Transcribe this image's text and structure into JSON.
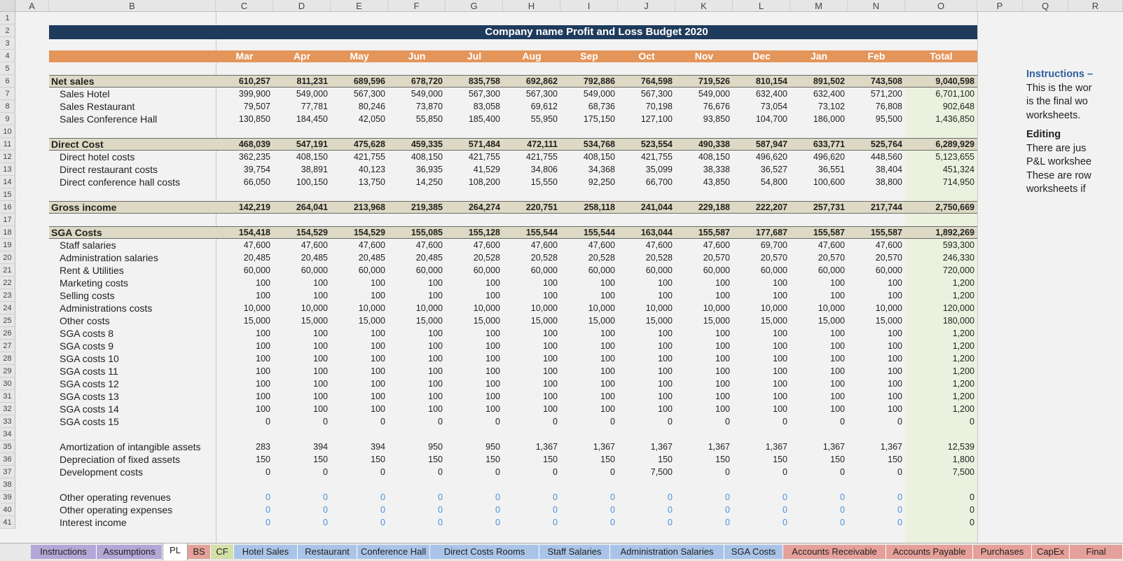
{
  "sheet": {
    "columns": [
      "A",
      "B",
      "C",
      "D",
      "E",
      "F",
      "G",
      "H",
      "I",
      "J",
      "K",
      "L",
      "M",
      "N",
      "O",
      "P",
      "Q",
      "R"
    ],
    "title": "Company name Profit and Loss Budget 2020",
    "months": [
      "Mar",
      "Apr",
      "May",
      "Jun",
      "Jul",
      "Aug",
      "Sep",
      "Oct",
      "Nov",
      "Dec",
      "Jan",
      "Feb",
      "Total"
    ],
    "rows": [
      {
        "n": 6,
        "label": "Net sales",
        "style": "section",
        "values": [
          "610,257",
          "811,231",
          "689,596",
          "678,720",
          "835,758",
          "692,862",
          "792,886",
          "764,598",
          "719,526",
          "810,154",
          "891,502",
          "743,508",
          "9,040,598"
        ]
      },
      {
        "n": 7,
        "label": "Sales Hotel",
        "values": [
          "399,900",
          "549,000",
          "567,300",
          "549,000",
          "567,300",
          "567,300",
          "549,000",
          "567,300",
          "549,000",
          "632,400",
          "632,400",
          "571,200",
          "6,701,100"
        ]
      },
      {
        "n": 8,
        "label": "Sales Restaurant",
        "values": [
          "79,507",
          "77,781",
          "80,246",
          "73,870",
          "83,058",
          "69,612",
          "68,736",
          "70,198",
          "76,676",
          "73,054",
          "73,102",
          "76,808",
          "902,648"
        ]
      },
      {
        "n": 9,
        "label": "Sales Conference Hall",
        "values": [
          "130,850",
          "184,450",
          "42,050",
          "55,850",
          "185,400",
          "55,950",
          "175,150",
          "127,100",
          "93,850",
          "104,700",
          "186,000",
          "95,500",
          "1,436,850"
        ]
      },
      {
        "n": 11,
        "label": "Direct Cost",
        "style": "section",
        "values": [
          "468,039",
          "547,191",
          "475,628",
          "459,335",
          "571,484",
          "472,111",
          "534,768",
          "523,554",
          "490,338",
          "587,947",
          "633,771",
          "525,764",
          "6,289,929"
        ]
      },
      {
        "n": 12,
        "label": "Direct hotel costs",
        "values": [
          "362,235",
          "408,150",
          "421,755",
          "408,150",
          "421,755",
          "421,755",
          "408,150",
          "421,755",
          "408,150",
          "496,620",
          "496,620",
          "448,560",
          "5,123,655"
        ]
      },
      {
        "n": 13,
        "label": "Direct restaurant costs",
        "values": [
          "39,754",
          "38,891",
          "40,123",
          "36,935",
          "41,529",
          "34,806",
          "34,368",
          "35,099",
          "38,338",
          "36,527",
          "36,551",
          "38,404",
          "451,324"
        ]
      },
      {
        "n": 14,
        "label": "Direct conference hall costs",
        "values": [
          "66,050",
          "100,150",
          "13,750",
          "14,250",
          "108,200",
          "15,550",
          "92,250",
          "66,700",
          "43,850",
          "54,800",
          "100,600",
          "38,800",
          "714,950"
        ]
      },
      {
        "n": 16,
        "label": "Gross income",
        "style": "section",
        "values": [
          "142,219",
          "264,041",
          "213,968",
          "219,385",
          "264,274",
          "220,751",
          "258,118",
          "241,044",
          "229,188",
          "222,207",
          "257,731",
          "217,744",
          "2,750,669"
        ]
      },
      {
        "n": 18,
        "label": "SGA Costs",
        "style": "section",
        "values": [
          "154,418",
          "154,529",
          "154,529",
          "155,085",
          "155,128",
          "155,544",
          "155,544",
          "163,044",
          "155,587",
          "177,687",
          "155,587",
          "155,587",
          "1,892,269"
        ]
      },
      {
        "n": 19,
        "label": "Staff salaries",
        "values": [
          "47,600",
          "47,600",
          "47,600",
          "47,600",
          "47,600",
          "47,600",
          "47,600",
          "47,600",
          "47,600",
          "69,700",
          "47,600",
          "47,600",
          "593,300"
        ]
      },
      {
        "n": 20,
        "label": "Administration salaries",
        "values": [
          "20,485",
          "20,485",
          "20,485",
          "20,485",
          "20,528",
          "20,528",
          "20,528",
          "20,528",
          "20,570",
          "20,570",
          "20,570",
          "20,570",
          "246,330"
        ]
      },
      {
        "n": 21,
        "label": "Rent & Utilities",
        "values": [
          "60,000",
          "60,000",
          "60,000",
          "60,000",
          "60,000",
          "60,000",
          "60,000",
          "60,000",
          "60,000",
          "60,000",
          "60,000",
          "60,000",
          "720,000"
        ]
      },
      {
        "n": 22,
        "label": "Marketing costs",
        "values": [
          "100",
          "100",
          "100",
          "100",
          "100",
          "100",
          "100",
          "100",
          "100",
          "100",
          "100",
          "100",
          "1,200"
        ]
      },
      {
        "n": 23,
        "label": "Selling costs",
        "values": [
          "100",
          "100",
          "100",
          "100",
          "100",
          "100",
          "100",
          "100",
          "100",
          "100",
          "100",
          "100",
          "1,200"
        ]
      },
      {
        "n": 24,
        "label": "Administrations costs",
        "values": [
          "10,000",
          "10,000",
          "10,000",
          "10,000",
          "10,000",
          "10,000",
          "10,000",
          "10,000",
          "10,000",
          "10,000",
          "10,000",
          "10,000",
          "120,000"
        ]
      },
      {
        "n": 25,
        "label": "Other costs",
        "values": [
          "15,000",
          "15,000",
          "15,000",
          "15,000",
          "15,000",
          "15,000",
          "15,000",
          "15,000",
          "15,000",
          "15,000",
          "15,000",
          "15,000",
          "180,000"
        ]
      },
      {
        "n": 26,
        "label": "SGA costs 8",
        "values": [
          "100",
          "100",
          "100",
          "100",
          "100",
          "100",
          "100",
          "100",
          "100",
          "100",
          "100",
          "100",
          "1,200"
        ]
      },
      {
        "n": 27,
        "label": "SGA costs 9",
        "values": [
          "100",
          "100",
          "100",
          "100",
          "100",
          "100",
          "100",
          "100",
          "100",
          "100",
          "100",
          "100",
          "1,200"
        ]
      },
      {
        "n": 28,
        "label": "SGA costs 10",
        "values": [
          "100",
          "100",
          "100",
          "100",
          "100",
          "100",
          "100",
          "100",
          "100",
          "100",
          "100",
          "100",
          "1,200"
        ]
      },
      {
        "n": 29,
        "label": "SGA costs 11",
        "values": [
          "100",
          "100",
          "100",
          "100",
          "100",
          "100",
          "100",
          "100",
          "100",
          "100",
          "100",
          "100",
          "1,200"
        ]
      },
      {
        "n": 30,
        "label": "SGA costs 12",
        "values": [
          "100",
          "100",
          "100",
          "100",
          "100",
          "100",
          "100",
          "100",
          "100",
          "100",
          "100",
          "100",
          "1,200"
        ]
      },
      {
        "n": 31,
        "label": "SGA costs 13",
        "values": [
          "100",
          "100",
          "100",
          "100",
          "100",
          "100",
          "100",
          "100",
          "100",
          "100",
          "100",
          "100",
          "1,200"
        ]
      },
      {
        "n": 32,
        "label": "SGA costs 14",
        "values": [
          "100",
          "100",
          "100",
          "100",
          "100",
          "100",
          "100",
          "100",
          "100",
          "100",
          "100",
          "100",
          "1,200"
        ]
      },
      {
        "n": 33,
        "label": "SGA costs 15",
        "values": [
          "0",
          "0",
          "0",
          "0",
          "0",
          "0",
          "0",
          "0",
          "0",
          "0",
          "0",
          "0",
          "0"
        ]
      },
      {
        "n": 35,
        "label": "Amortization of intangible assets",
        "values": [
          "283",
          "394",
          "394",
          "950",
          "950",
          "1,367",
          "1,367",
          "1,367",
          "1,367",
          "1,367",
          "1,367",
          "1,367",
          "12,539"
        ]
      },
      {
        "n": 36,
        "label": "Depreciation of fixed assets",
        "values": [
          "150",
          "150",
          "150",
          "150",
          "150",
          "150",
          "150",
          "150",
          "150",
          "150",
          "150",
          "150",
          "1,800"
        ]
      },
      {
        "n": 37,
        "label": "Development costs",
        "values": [
          "0",
          "0",
          "0",
          "0",
          "0",
          "0",
          "0",
          "7,500",
          "0",
          "0",
          "0",
          "0",
          "7,500"
        ]
      },
      {
        "n": 39,
        "label": "Other operating revenues",
        "style": "input",
        "values": [
          "0",
          "0",
          "0",
          "0",
          "0",
          "0",
          "0",
          "0",
          "0",
          "0",
          "0",
          "0",
          "0"
        ]
      },
      {
        "n": 40,
        "label": "Other operating expenses",
        "style": "input",
        "values": [
          "0",
          "0",
          "0",
          "0",
          "0",
          "0",
          "0",
          "0",
          "0",
          "0",
          "0",
          "0",
          "0"
        ]
      },
      {
        "n": 41,
        "label": "Interest income",
        "style": "input",
        "values": [
          "0",
          "0",
          "0",
          "0",
          "0",
          "0",
          "0",
          "0",
          "0",
          "0",
          "0",
          "0",
          "0"
        ]
      }
    ],
    "instructions": [
      {
        "text": "Instructions –",
        "style": "title"
      },
      {
        "text": "This is the wor",
        "style": "body"
      },
      {
        "text": "is the final wo",
        "style": "body"
      },
      {
        "text": "worksheets.",
        "style": "body"
      },
      {
        "text": "",
        "style": "gap"
      },
      {
        "text": "Editing",
        "style": "head"
      },
      {
        "text": "There are jus",
        "style": "body"
      },
      {
        "text": "P&L workshee",
        "style": "body"
      },
      {
        "text": "These are row",
        "style": "body"
      },
      {
        "text": "worksheets if",
        "style": "body"
      }
    ]
  },
  "tabs": [
    {
      "label": "Instructions",
      "color": "#b4a7d6"
    },
    {
      "label": "Assumptions",
      "color": "#b4a7d6"
    },
    {
      "label": "PL",
      "color": "#ffffff",
      "active": true
    },
    {
      "label": "BS",
      "color": "#e6a09a"
    },
    {
      "label": "CF",
      "color": "#d3e0a6"
    },
    {
      "label": "Hotel Sales",
      "color": "#a9c4e8"
    },
    {
      "label": "Restaurant",
      "color": "#a9c4e8"
    },
    {
      "label": "Conference Hall",
      "color": "#a9c4e8"
    },
    {
      "label": "Direct Costs Rooms",
      "color": "#a9c4e8"
    },
    {
      "label": "Staff Salaries",
      "color": "#a9c4e8"
    },
    {
      "label": "Administration Salaries",
      "color": "#a9c4e8"
    },
    {
      "label": "SGA Costs",
      "color": "#a9c4e8"
    },
    {
      "label": "Accounts Receivable",
      "color": "#e6a09a"
    },
    {
      "label": "Accounts Payable",
      "color": "#e6a09a"
    },
    {
      "label": "Purchases",
      "color": "#e6a09a"
    },
    {
      "label": "CapEx",
      "color": "#e6a09a"
    },
    {
      "label": "Final",
      "color": "#e6a09a"
    }
  ]
}
